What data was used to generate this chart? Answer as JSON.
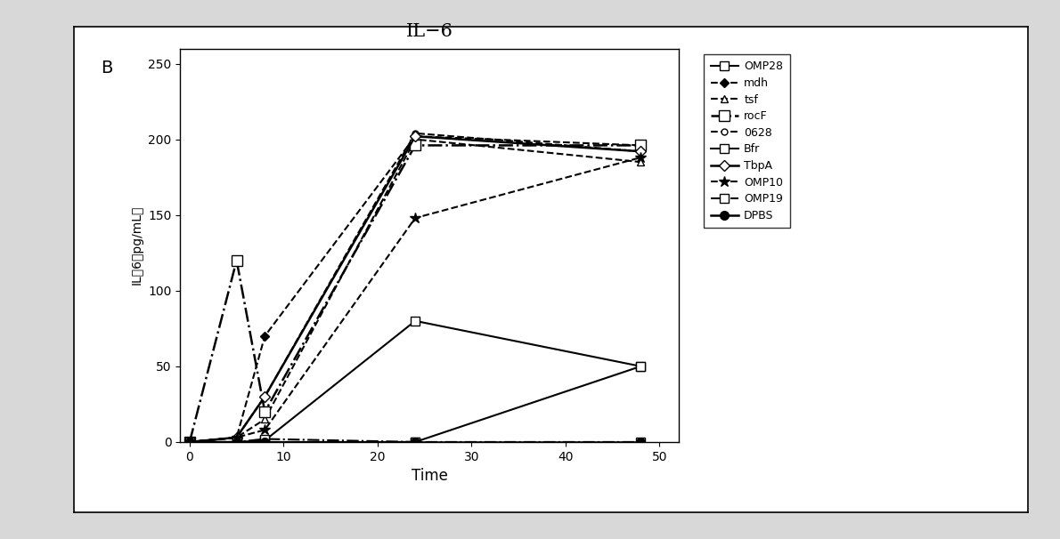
{
  "title": "IL−6",
  "panel_label": "B",
  "xlabel": "Time",
  "ylabel": "IL−6（pg/mL）",
  "ylim": [
    0,
    260
  ],
  "xlim": [
    -1,
    52
  ],
  "xticks": [
    0,
    10,
    20,
    30,
    40,
    50
  ],
  "yticks": [
    0,
    50,
    100,
    150,
    200,
    250
  ],
  "time_points": [
    0,
    5,
    8,
    24,
    48
  ],
  "series": [
    {
      "name": "OMP28",
      "values": [
        0,
        0,
        1,
        80,
        50
      ],
      "ls": "-",
      "marker": "s",
      "mfc": "white",
      "lw": 1.5,
      "ms": 7
    },
    {
      "name": "mdh",
      "values": [
        0,
        3,
        70,
        202,
        196
      ],
      "ls": "--",
      "marker": "D",
      "mfc": "black",
      "lw": 1.5,
      "ms": 5
    },
    {
      "name": "tsf",
      "values": [
        0,
        3,
        15,
        200,
        185
      ],
      "ls": "--",
      "marker": "^",
      "mfc": "white",
      "lw": 1.5,
      "ms": 6
    },
    {
      "name": "rocF",
      "values": [
        0,
        120,
        20,
        196,
        196
      ],
      "ls": "-.",
      "marker": "s",
      "mfc": "white",
      "lw": 1.8,
      "ms": 8
    },
    {
      "name": "0628",
      "values": [
        0,
        3,
        30,
        204,
        192
      ],
      "ls": "--",
      "marker": "o",
      "mfc": "white",
      "lw": 1.5,
      "ms": 5
    },
    {
      "name": "Bfr",
      "values": [
        0,
        0,
        0,
        0,
        50
      ],
      "ls": "-",
      "marker": "s",
      "mfc": "white",
      "lw": 1.5,
      "ms": 7
    },
    {
      "name": "TbpA",
      "values": [
        0,
        3,
        30,
        202,
        192
      ],
      "ls": "-",
      "marker": "D",
      "mfc": "white",
      "lw": 1.8,
      "ms": 6
    },
    {
      "name": "OMP10",
      "values": [
        0,
        3,
        8,
        148,
        188
      ],
      "ls": "--",
      "marker": "*",
      "mfc": "black",
      "lw": 1.5,
      "ms": 9
    },
    {
      "name": "OMP19",
      "values": [
        0,
        0,
        2,
        0,
        0
      ],
      "ls": "-.",
      "marker": "s",
      "mfc": "white",
      "lw": 1.5,
      "ms": 7
    },
    {
      "name": "DPBS",
      "values": [
        0,
        0,
        0,
        0,
        0
      ],
      "ls": "-",
      "marker": "o",
      "mfc": "black",
      "lw": 1.8,
      "ms": 7
    }
  ],
  "fig_bg": "#d8d8d8",
  "box_bg": "#ffffff"
}
